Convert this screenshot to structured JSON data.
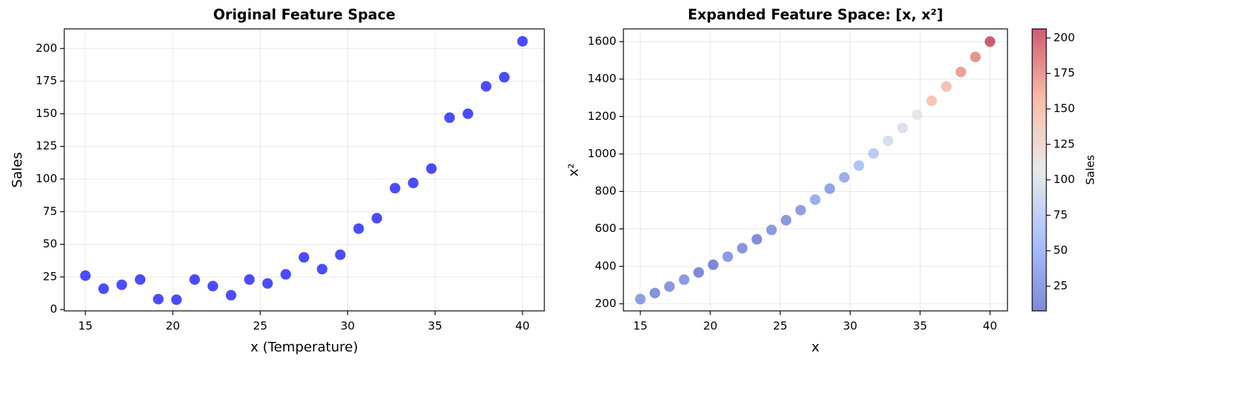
{
  "chart_data": [
    {
      "type": "scatter",
      "title": "Original Feature Space",
      "x_label": "x (Temperature)",
      "y_label": "Sales",
      "x": [
        15,
        16.04,
        17.08,
        18.13,
        19.17,
        20.21,
        21.25,
        22.29,
        23.33,
        24.38,
        25.42,
        26.46,
        27.5,
        28.54,
        29.58,
        30.63,
        31.67,
        32.71,
        33.75,
        34.79,
        35.83,
        36.88,
        37.92,
        38.96,
        40
      ],
      "values": [
        26,
        16,
        19,
        23,
        8,
        7.6,
        23,
        18,
        11,
        23,
        20,
        27,
        40,
        31,
        42,
        62,
        70,
        93,
        97,
        108,
        147,
        150,
        171,
        178,
        205.5
      ],
      "color": "#0000ff",
      "xlim": [
        13.79,
        41.25
      ],
      "ylim": [
        -1,
        215
      ],
      "xticks": [
        15,
        20,
        25,
        30,
        35,
        40
      ],
      "yticks": [
        0,
        25,
        50,
        75,
        100,
        125,
        150,
        175,
        200
      ],
      "grid": true
    },
    {
      "type": "scatter",
      "title": "Expanded Feature Space: [x, x²]",
      "x_label": "x",
      "y_label": "x²",
      "x": [
        15,
        16.04,
        17.08,
        18.13,
        19.17,
        20.21,
        21.25,
        22.29,
        23.33,
        24.38,
        25.42,
        26.46,
        27.5,
        28.54,
        29.58,
        30.63,
        31.67,
        32.71,
        33.75,
        34.79,
        35.83,
        36.88,
        37.92,
        38.96,
        40
      ],
      "values": [
        225,
        257.29,
        291.84,
        328.7,
        367.36,
        408.44,
        451.56,
        496.84,
        544.28,
        594.38,
        646.18,
        700.13,
        756.25,
        814.53,
        874.97,
        938.2,
        1002.99,
        1069.94,
        1139.06,
        1210.34,
        1283.79,
        1360.13,
        1437.93,
        1517.88,
        1600
      ],
      "color_values": [
        26,
        16,
        19,
        23,
        8,
        7.6,
        23,
        18,
        11,
        23,
        20,
        27,
        40,
        31,
        42,
        62,
        70,
        93,
        97,
        108,
        147,
        150,
        171,
        178,
        205.5
      ],
      "colormap": "coolwarm",
      "clim": [
        7.6,
        206.4
      ],
      "cticks": [
        25,
        50,
        75,
        100,
        125,
        150,
        175,
        200
      ],
      "colorbar_label": "Sales",
      "xlim": [
        13.79,
        41.25
      ],
      "ylim": [
        162,
        1668
      ],
      "xticks": [
        15,
        20,
        25,
        30,
        35,
        40
      ],
      "yticks": [
        200,
        400,
        600,
        800,
        1000,
        1200,
        1400,
        1600
      ],
      "grid": true
    }
  ]
}
